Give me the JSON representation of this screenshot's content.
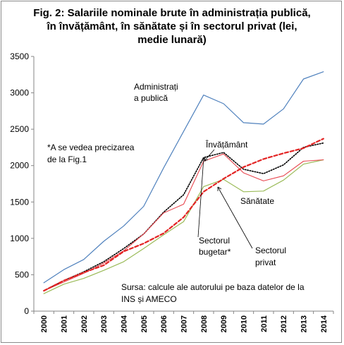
{
  "chart_data": {
    "type": "line",
    "title_lines": [
      "Fig. 2: Salariile nominale brute în administrația publică,",
      "în învățământ, în sănătate și în sectorul privat (lei,",
      "medie lunară)"
    ],
    "x": [
      "2000",
      "2001",
      "2002",
      "2003",
      "2004",
      "2005",
      "2006",
      "2007",
      "2008",
      "2009",
      "2010",
      "2011",
      "2012",
      "2013",
      "2014"
    ],
    "ylim": [
      0,
      3500
    ],
    "yticks": [
      0,
      500,
      1000,
      1500,
      2000,
      2500,
      3000,
      3500
    ],
    "grid": false,
    "series": [
      {
        "name": "Administrați a publică",
        "color": "#4f81bd",
        "style": "solid",
        "values": [
          390,
          570,
          710,
          960,
          1170,
          1440,
          1970,
          2470,
          2970,
          2850,
          2590,
          2570,
          2780,
          3190,
          3290
        ]
      },
      {
        "name": "Învățământ",
        "color": "#000000",
        "style": "dotted",
        "values": [
          280,
          420,
          540,
          680,
          860,
          1060,
          1360,
          1600,
          2110,
          2180,
          1950,
          1890,
          2010,
          2250,
          2310
        ]
      },
      {
        "name": "Sănătate",
        "color": "#9bbb59",
        "style": "solid",
        "values": [
          240,
          370,
          450,
          560,
          680,
          860,
          1050,
          1230,
          1710,
          1810,
          1640,
          1650,
          1800,
          2020,
          2080
        ]
      },
      {
        "name": "Sectorul bugetar*",
        "color": "#e8474f",
        "style": "solid",
        "values": [
          280,
          400,
          520,
          660,
          830,
          1060,
          1350,
          1470,
          2060,
          2160,
          1900,
          1790,
          1860,
          2060,
          2080
        ]
      },
      {
        "name": "Sectorul privat",
        "color": "#e32424",
        "style": "dashed",
        "values": [
          280,
          420,
          530,
          630,
          820,
          930,
          1070,
          1290,
          1640,
          1820,
          1980,
          2090,
          2170,
          2240,
          2370
        ]
      }
    ],
    "annotations": {
      "admin_line1": "Administrați",
      "admin_line2": "a publică",
      "invatamant": "Învățământ",
      "sanatate": "Sănătate",
      "bugetar_line1": "Sectorul",
      "bugetar_line2": "bugetar*",
      "privat_line1": "Sectorul",
      "privat_line2": "privat",
      "note_line1": "*A se vedea precizarea",
      "note_line2": "de la Fig.1",
      "source_line1": "Sursa: calcule ale autorului  pe baza datelor de la",
      "source_line2": "INS și AMECO"
    }
  }
}
